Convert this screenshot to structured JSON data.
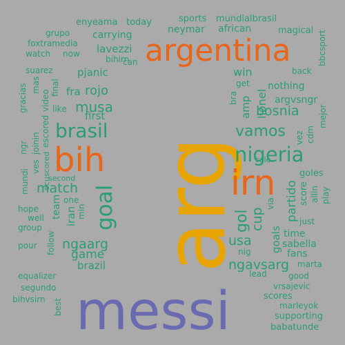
{
  "colors": {
    "background": "#aaaaaa",
    "teal": "#2a9d72",
    "orange": "#e8651a",
    "gold": "#e8a400",
    "purple": "#6a6ab0"
  },
  "words": [
    {
      "text": "messi",
      "color": "purple"
    },
    {
      "text": "arg",
      "color": "gold"
    },
    {
      "text": "argentina",
      "color": "orange"
    },
    {
      "text": "bih",
      "color": "orange"
    },
    {
      "text": "irn",
      "color": "orange"
    },
    {
      "text": "nigeria",
      "color": "teal"
    },
    {
      "text": "brasil",
      "color": "teal"
    },
    {
      "text": "goal",
      "color": "teal"
    },
    {
      "text": "vamos",
      "color": "teal"
    },
    {
      "text": "bosnia",
      "color": "teal"
    },
    {
      "text": "musa",
      "color": "teal"
    },
    {
      "text": "ngaarg",
      "color": "teal"
    },
    {
      "text": "ngavsarg",
      "color": "teal"
    },
    {
      "text": "match",
      "color": "teal"
    },
    {
      "text": "gol",
      "color": "teal"
    },
    {
      "text": "cup",
      "color": "teal"
    },
    {
      "text": "usa",
      "color": "teal"
    },
    {
      "text": "game",
      "color": "teal"
    },
    {
      "text": "rojo",
      "color": "teal"
    },
    {
      "text": "partido",
      "color": "teal"
    },
    {
      "text": "goals",
      "color": "teal"
    },
    {
      "text": "lavezzi",
      "color": "teal"
    },
    {
      "text": "pjanic",
      "color": "teal"
    },
    {
      "text": "lionel",
      "color": "teal"
    },
    {
      "text": "neymar",
      "color": "teal"
    },
    {
      "text": "carrying",
      "color": "teal"
    },
    {
      "text": "win",
      "color": "teal"
    },
    {
      "text": "first",
      "color": "teal"
    },
    {
      "text": "amp",
      "color": "teal"
    },
    {
      "text": "iran",
      "color": "teal"
    },
    {
      "text": "team",
      "color": "teal"
    },
    {
      "text": "brazil",
      "color": "teal"
    },
    {
      "text": "sabella",
      "color": "teal"
    },
    {
      "text": "argvsngr",
      "color": "teal"
    },
    {
      "text": "nothing",
      "color": "teal"
    },
    {
      "text": "fra",
      "color": "teal"
    },
    {
      "text": "time",
      "color": "teal"
    },
    {
      "text": "fans",
      "color": "teal"
    },
    {
      "text": "magical",
      "color": "teal"
    },
    {
      "text": "scores",
      "color": "teal"
    },
    {
      "text": "goles",
      "color": "teal"
    },
    {
      "text": "score",
      "color": "teal"
    },
    {
      "text": "african",
      "color": "teal"
    },
    {
      "text": "sports",
      "color": "teal"
    },
    {
      "text": "mundialbrasil",
      "color": "teal"
    },
    {
      "text": "enyeama",
      "color": "teal"
    },
    {
      "text": "today",
      "color": "teal"
    },
    {
      "text": "grupo",
      "color": "teal"
    },
    {
      "text": "foxtramedia",
      "color": "teal"
    },
    {
      "text": "watch",
      "color": "teal"
    },
    {
      "text": "now",
      "color": "teal"
    },
    {
      "text": "can",
      "color": "teal"
    },
    {
      "text": "bihirn",
      "color": "teal"
    },
    {
      "text": "suarez",
      "color": "teal"
    },
    {
      "text": "mas",
      "color": "teal"
    },
    {
      "text": "final",
      "color": "teal"
    },
    {
      "text": "like",
      "color": "teal"
    },
    {
      "text": "gracias",
      "color": "teal"
    },
    {
      "text": "video",
      "color": "teal"
    },
    {
      "text": "escored",
      "color": "teal"
    },
    {
      "text": "joinin",
      "color": "teal"
    },
    {
      "text": "ves",
      "color": "teal"
    },
    {
      "text": "ngr",
      "color": "teal"
    },
    {
      "text": "ecuscored",
      "color": "teal"
    },
    {
      "text": "mundi",
      "color": "teal"
    },
    {
      "text": "second",
      "color": "teal"
    },
    {
      "text": "one",
      "color": "teal"
    },
    {
      "text": "min",
      "color": "teal"
    },
    {
      "text": "hope",
      "color": "teal"
    },
    {
      "text": "well",
      "color": "teal"
    },
    {
      "text": "group",
      "color": "teal"
    },
    {
      "text": "pour",
      "color": "teal"
    },
    {
      "text": "follow",
      "color": "teal"
    },
    {
      "text": "equalizer",
      "color": "teal"
    },
    {
      "text": "segundo",
      "color": "teal"
    },
    {
      "text": "bihvsirn",
      "color": "teal"
    },
    {
      "text": "best",
      "color": "teal"
    },
    {
      "text": "back",
      "color": "teal"
    },
    {
      "text": "get",
      "color": "teal"
    },
    {
      "text": "bra",
      "color": "teal"
    },
    {
      "text": "bbcsport",
      "color": "teal"
    },
    {
      "text": "mejor",
      "color": "teal"
    },
    {
      "text": "cdm",
      "color": "teal"
    },
    {
      "text": "vez",
      "color": "teal"
    },
    {
      "text": "sale",
      "color": "teal"
    },
    {
      "text": "via",
      "color": "teal"
    },
    {
      "text": "allin",
      "color": "teal"
    },
    {
      "text": "play",
      "color": "teal"
    },
    {
      "text": "just",
      "color": "teal"
    },
    {
      "text": "nig",
      "color": "teal"
    },
    {
      "text": "lead",
      "color": "teal"
    },
    {
      "text": "marta",
      "color": "teal"
    },
    {
      "text": "good",
      "color": "teal"
    },
    {
      "text": "vrsajevic",
      "color": "teal"
    },
    {
      "text": "marleyok",
      "color": "teal"
    },
    {
      "text": "supporting",
      "color": "teal"
    },
    {
      "text": "babatunde",
      "color": "teal"
    }
  ]
}
